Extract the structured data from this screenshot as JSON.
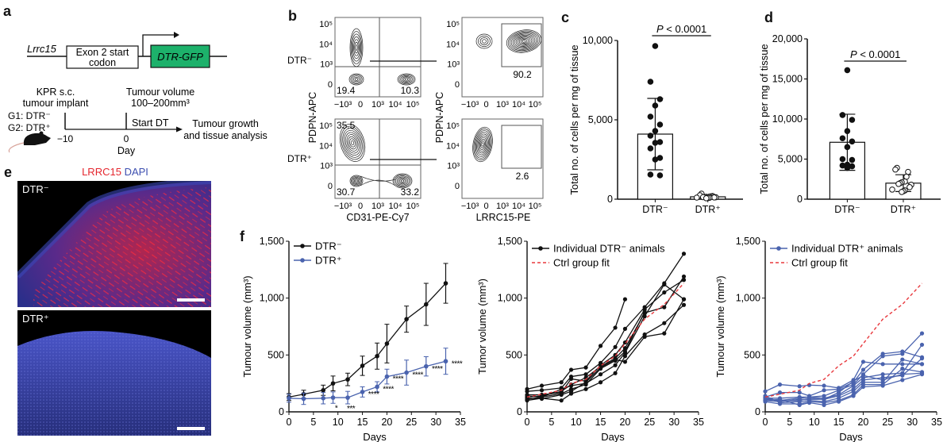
{
  "panels": {
    "a": {
      "label": "a",
      "gene": "Lrrc15",
      "exon_box": "Exon 2 start codon",
      "exon_line1": "Exon 2 start",
      "exon_line2": "codon",
      "insert": "DTR-GFP",
      "insert_color": "#1db16b",
      "timeline": {
        "event1_line1": "KPR s.c.",
        "event1_line2": "tumour implant",
        "event2_line1": "Tumour volume",
        "event2_line2": "100–200mm³",
        "groups": [
          "G1: DTR⁻",
          "G2: DTR⁺"
        ],
        "start_dt": "Start DT",
        "outcome_line1": "Tumour growth",
        "outcome_line2": "and tissue analysis",
        "tick1": "−10",
        "tick2": "0",
        "axis_label": "Day"
      }
    },
    "b": {
      "label": "b",
      "rows": [
        {
          "name": "DTR⁻",
          "q_ul": "",
          "q_ll": "19.4",
          "q_lr": "10.3",
          "gate": "90.2"
        },
        {
          "name": "DTR⁺",
          "q_ul": "35.5",
          "q_ll": "30.7",
          "q_lr": "33.2",
          "gate": "2.6"
        }
      ],
      "y_label": "PDPN-APC",
      "x_label_left": "CD31-PE-Cy7",
      "x_label_right": "LRRC15-PE",
      "x_ticks": [
        "−10³",
        "0",
        "10³",
        "10⁴",
        "10⁵"
      ],
      "y_ticks": [
        "0",
        "10³",
        "10⁴",
        "10⁵"
      ]
    },
    "e": {
      "label": "e",
      "title_red": "LRRC15",
      "title_blue": "DAPI",
      "top": "DTR⁻",
      "bottom": "DTR⁺"
    },
    "f": {
      "label": "f"
    }
  },
  "chart_data": [
    {
      "id": "c",
      "type": "bar",
      "title": "",
      "ylabel": "Total  no. of cells per mg of tissue",
      "categories": [
        "DTR⁻",
        "DTR⁺"
      ],
      "values": [
        4100,
        150
      ],
      "error": [
        2250,
        80
      ],
      "ylim": [
        0,
        10000
      ],
      "yticks": [
        "0",
        "5,000",
        "10,000"
      ],
      "ytick_values": [
        0,
        5000,
        10000
      ],
      "annotation": "P < 0.0001",
      "points": [
        [
          9650,
          7400,
          6300,
          5900,
          5200,
          4700,
          4300,
          4000,
          3600,
          3550,
          3200,
          2600,
          2500,
          1550,
          1500
        ],
        [
          350,
          250,
          200,
          180,
          160,
          150,
          140,
          130,
          120,
          110,
          100,
          90,
          80,
          60
        ]
      ]
    },
    {
      "id": "d",
      "type": "bar",
      "title": "",
      "ylabel": "Total  no. of cells per mg of tissue",
      "categories": [
        "DTR⁻",
        "DTR⁺"
      ],
      "values": [
        7100,
        2000
      ],
      "error": [
        3500,
        1050
      ],
      "ylim": [
        0,
        20000
      ],
      "yticks": [
        "0",
        "5,000",
        "10,000",
        "15,000",
        "20,000"
      ],
      "ytick_values": [
        0,
        5000,
        10000,
        15000,
        20000
      ],
      "annotation": "P < 0.0001",
      "points": [
        [
          16100,
          10500,
          9900,
          8500,
          7600,
          7200,
          6500,
          5000,
          4900,
          4300,
          4200,
          4100,
          3900
        ],
        [
          3900,
          3700,
          3400,
          2800,
          2200,
          2100,
          2000,
          1900,
          1800,
          1500,
          1200,
          1100,
          1000,
          900
        ]
      ]
    },
    {
      "id": "f1",
      "type": "line",
      "xlabel": "Days",
      "ylabel": "Tumour volume (mm³)",
      "xlim": [
        0,
        35
      ],
      "ylim": [
        0,
        1500
      ],
      "xticks": [
        "0",
        "5",
        "10",
        "15",
        "20",
        "25",
        "30",
        "35"
      ],
      "yticks": [
        "0",
        "500",
        "1,000",
        "1,500"
      ],
      "x": [
        0,
        3,
        7,
        9,
        12,
        15,
        18,
        20,
        24,
        28,
        32
      ],
      "series": [
        {
          "name": "DTR⁻",
          "color": "#111111",
          "values": [
            130,
            155,
            190,
            250,
            285,
            405,
            490,
            600,
            815,
            945,
            1130
          ],
          "error": [
            30,
            35,
            45,
            65,
            55,
            85,
            115,
            170,
            115,
            185,
            175
          ]
        },
        {
          "name": "DTR⁺",
          "color": "#4a63ae",
          "values": [
            120,
            115,
            120,
            125,
            125,
            175,
            220,
            310,
            345,
            400,
            445
          ],
          "error": [
            35,
            50,
            50,
            50,
            55,
            45,
            45,
            65,
            110,
            85,
            115
          ]
        }
      ],
      "significance": [
        "",
        "",
        "",
        "*",
        "***",
        "****",
        "****",
        "****",
        "****",
        "****",
        "****"
      ]
    },
    {
      "id": "f2",
      "type": "line",
      "xlabel": "Days",
      "ylabel": "Tumor volume (mm³)",
      "xlim": [
        0,
        35
      ],
      "ylim": [
        0,
        1500
      ],
      "xticks": [
        "0",
        "5",
        "10",
        "15",
        "20",
        "25",
        "30",
        "35"
      ],
      "yticks": [
        "0",
        "500",
        "1,000",
        "1,500"
      ],
      "legend": [
        "Individual DTR⁻ animals",
        "Ctrl group fit"
      ],
      "x": [
        0,
        3,
        7,
        9,
        12,
        15,
        18,
        20,
        24,
        28,
        32
      ],
      "fit": [
        130,
        155,
        190,
        250,
        285,
        405,
        490,
        600,
        815,
        945,
        1130
      ],
      "fit_color": "#e8383d",
      "series_color": "#111111",
      "individuals": [
        [
          200,
          230,
          260,
          370,
          390,
          580,
          740,
          990
        ],
        [
          180,
          190,
          210,
          310,
          330,
          430,
          570,
          730,
          920,
          1130,
          1390
        ],
        [
          150,
          150,
          170,
          290,
          270,
          410,
          500,
          610,
          900,
          1050,
          1160
        ],
        [
          130,
          140,
          180,
          240,
          300,
          400,
          470,
          560,
          870,
          920,
          1190
        ],
        [
          110,
          130,
          200,
          230,
          250,
          330,
          410,
          520,
          840,
          1120,
          990
        ],
        [
          100,
          120,
          100,
          160,
          200,
          260,
          340,
          490,
          680,
          780,
          940
        ],
        [
          120,
          115,
          150,
          180,
          260,
          390,
          460,
          440,
          660,
          690,
          990
        ],
        [
          140,
          130,
          160,
          200,
          240,
          380,
          450,
          530,
          880
        ]
      ]
    },
    {
      "id": "f3",
      "type": "line",
      "xlabel": "Days",
      "ylabel": "Tumour volume (mm³)",
      "xlim": [
        0,
        35
      ],
      "ylim": [
        0,
        1500
      ],
      "xticks": [
        "0",
        "5",
        "10",
        "15",
        "20",
        "25",
        "30",
        "35"
      ],
      "yticks": [
        "0",
        "500",
        "1,000",
        "1,500"
      ],
      "legend": [
        "Individual DTR⁺ animals",
        "Ctrl group fit"
      ],
      "x": [
        0,
        3,
        7,
        9,
        12,
        15,
        18,
        20,
        24,
        28,
        32
      ],
      "fit": [
        130,
        155,
        190,
        250,
        285,
        405,
        490,
        600,
        815,
        945,
        1130
      ],
      "fit_color": "#e8383d",
      "series_color": "#4a63ae",
      "individuals": [
        [
          180,
          240,
          225,
          235,
          230,
          210,
          280,
          440,
          420,
          420,
          420
        ],
        [
          130,
          170,
          170,
          140,
          190,
          200,
          260,
          370,
          510,
          530,
          480
        ],
        [
          120,
          120,
          130,
          130,
          140,
          190,
          240,
          330,
          490,
          510,
          690
        ],
        [
          110,
          100,
          120,
          130,
          120,
          150,
          230,
          300,
          330,
          340,
          590
        ],
        [
          100,
          90,
          110,
          110,
          110,
          140,
          200,
          280,
          300,
          320,
          470
        ],
        [
          140,
          80,
          90,
          100,
          90,
          120,
          180,
          260,
          260,
          460,
          420
        ],
        [
          90,
          70,
          70,
          90,
          80,
          100,
          150,
          240,
          240,
          380,
          350
        ],
        [
          100,
          110,
          60,
          80,
          60,
          90,
          140,
          220,
          230,
          280,
          330
        ],
        [
          120,
          95,
          100,
          120,
          110,
          170,
          270,
          320,
          280,
          330,
          340
        ]
      ]
    }
  ]
}
